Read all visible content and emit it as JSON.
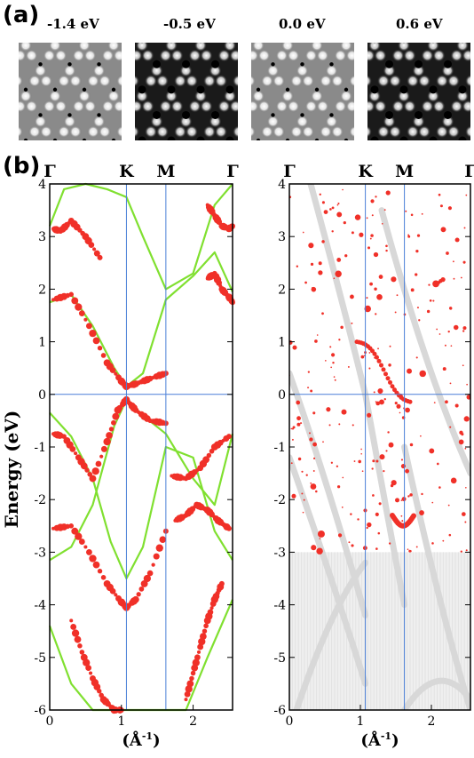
{
  "panel_a": {
    "label": "(a)",
    "images": [
      {
        "energy": "-1.4 eV",
        "tone": "light"
      },
      {
        "energy": "-0.5 eV",
        "tone": "dark"
      },
      {
        "energy": "0.0 eV",
        "tone": "light"
      },
      {
        "energy": "0.6 eV",
        "tone": "dark"
      }
    ]
  },
  "panel_b": {
    "label": "(b)"
  },
  "colors": {
    "green_bands": "#80e030",
    "red_markers": "#f03028",
    "gray_bulk": "#d8d8d8",
    "guide_lines": "#4a7fd8"
  },
  "chart_data": [
    {
      "type": "scatter",
      "ylabel": "Energy (eV)",
      "xlabel": "(Å-1)",
      "xlabel_main": "(Å",
      "xlabel_sup": "-1",
      "xlabel_close": ")",
      "ylim": [
        -6,
        4
      ],
      "xlim": [
        0,
        2.55
      ],
      "y_ticks": [
        "-6",
        "-5",
        "-4",
        "-3",
        "-2",
        "-1",
        "0",
        "1",
        "2",
        "3",
        "4"
      ],
      "x_ticks": [
        "0",
        "1",
        "2"
      ],
      "high_symmetry_points": [
        {
          "label": "Γ",
          "x": 0
        },
        {
          "label": "K",
          "x": 1.07
        },
        {
          "label": "M",
          "x": 1.62
        },
        {
          "label": "Γ",
          "x": 2.55
        }
      ],
      "fermi_level": 0,
      "green_bands": [
        {
          "name": "",
          "x": [
            0,
            0.3,
            0.6,
            0.9,
            1.07,
            1.3,
            1.62,
            2.0,
            2.3,
            2.55
          ],
          "y": [
            -3.15,
            -2.9,
            -2.1,
            -0.6,
            -0.1,
            -0.4,
            -0.75,
            -1.6,
            -2.1,
            -0.75
          ]
        },
        {
          "name": "",
          "x": [
            0,
            0.3,
            0.6,
            0.85,
            1.07,
            1.3,
            1.62,
            2.0,
            2.3,
            2.55
          ],
          "y": [
            -0.35,
            -0.8,
            -1.6,
            -2.8,
            -3.5,
            -2.9,
            -1.0,
            -1.2,
            -2.6,
            -3.15
          ]
        },
        {
          "name": "",
          "x": [
            0,
            0.3,
            0.6,
            0.9,
            1.07,
            1.3,
            1.62,
            2.0,
            2.3,
            2.55
          ],
          "y": [
            1.75,
            1.9,
            1.3,
            0.5,
            0.15,
            0.4,
            1.8,
            2.25,
            2.7,
            1.95
          ]
        },
        {
          "name": "",
          "x": [
            0,
            0.3,
            0.6,
            0.9,
            1.07,
            1.3,
            1.62,
            1.9,
            2.2,
            2.55
          ],
          "y": [
            -4.4,
            -5.5,
            -6.0,
            -6.0,
            -6.0,
            -6.0,
            -6.0,
            -6.0,
            -5.0,
            -3.9
          ]
        },
        {
          "name": "",
          "x": [
            0,
            0.2,
            0.5,
            0.8,
            1.07,
            1.3,
            1.62,
            2.0,
            2.3,
            2.55
          ],
          "y": [
            3.2,
            3.9,
            4.0,
            3.9,
            3.75,
            3.0,
            2.0,
            2.3,
            3.6,
            4.0
          ]
        }
      ],
      "red_series": [
        {
          "name": "",
          "x": [
            0.05,
            0.2,
            0.4,
            0.6,
            0.8,
            0.95,
            1.07,
            1.2,
            1.4,
            1.62
          ],
          "y": [
            -0.75,
            -0.8,
            -1.2,
            -1.6,
            -0.9,
            -0.3,
            -0.1,
            -0.3,
            -0.5,
            -0.55
          ]
        },
        {
          "name": "",
          "x": [
            0.05,
            0.3,
            0.55,
            0.8,
            1.0,
            1.07,
            1.2,
            1.4,
            1.62
          ],
          "y": [
            -2.55,
            -2.5,
            -3.0,
            -3.6,
            -3.95,
            -4.05,
            -3.9,
            -3.4,
            -2.6
          ]
        },
        {
          "name": "",
          "x": [
            0.05,
            0.3,
            0.55,
            0.8,
            1.0,
            1.07,
            1.2,
            1.4,
            1.62
          ],
          "y": [
            1.8,
            1.9,
            1.3,
            0.6,
            0.25,
            0.15,
            0.2,
            0.3,
            0.4
          ]
        },
        {
          "name": "",
          "x": [
            0.05,
            0.15,
            0.3,
            0.5,
            0.7
          ],
          "y": [
            3.15,
            3.1,
            3.3,
            3.0,
            2.6
          ]
        },
        {
          "name": "",
          "x": [
            0.3,
            0.45,
            0.6,
            0.75,
            0.9,
            1.0
          ],
          "y": [
            -4.3,
            -4.9,
            -5.4,
            -5.8,
            -6.0,
            -6.0
          ]
        },
        {
          "name": "",
          "x": [
            1.9,
            2.0,
            2.1,
            2.2,
            2.3,
            2.4
          ],
          "y": [
            -5.8,
            -5.3,
            -4.8,
            -4.3,
            -3.9,
            -3.6
          ]
        },
        {
          "name": "",
          "x": [
            2.2,
            2.3,
            2.4,
            2.5,
            2.55
          ],
          "y": [
            2.2,
            2.3,
            2.0,
            1.85,
            1.75
          ]
        },
        {
          "name": "",
          "x": [
            2.2,
            2.3,
            2.4,
            2.5,
            2.55
          ],
          "y": [
            3.6,
            3.4,
            3.2,
            3.15,
            3.2
          ]
        },
        {
          "name": "",
          "x": [
            1.75,
            1.9,
            2.05,
            2.2,
            2.35,
            2.5
          ],
          "y": [
            -2.4,
            -2.3,
            -2.1,
            -2.2,
            -2.4,
            -2.55
          ]
        },
        {
          "name": "",
          "x": [
            1.7,
            1.9,
            2.1,
            2.3,
            2.5
          ],
          "y": [
            -1.55,
            -1.6,
            -1.4,
            -1.0,
            -0.8
          ]
        }
      ]
    },
    {
      "type": "scatter",
      "xlabel": "(Å-1)",
      "xlabel_main": "(Å",
      "xlabel_sup": "-1",
      "xlabel_close": ")",
      "ylim": [
        -6,
        4
      ],
      "xlim": [
        0,
        2.55
      ],
      "y_ticks": [
        "-6",
        "-5",
        "-4",
        "-3",
        "-2",
        "-1",
        "0",
        "1",
        "2",
        "3",
        "4"
      ],
      "x_ticks": [
        "0",
        "1",
        "2"
      ],
      "high_symmetry_points": [
        {
          "label": "Γ",
          "x": 0
        },
        {
          "label": "K",
          "x": 1.07
        },
        {
          "label": "M",
          "x": 1.62
        },
        {
          "label": "Γ",
          "x": 2.55
        }
      ],
      "fermi_level": 0,
      "bulk_region_bottom": [
        -6,
        -3
      ]
    }
  ]
}
